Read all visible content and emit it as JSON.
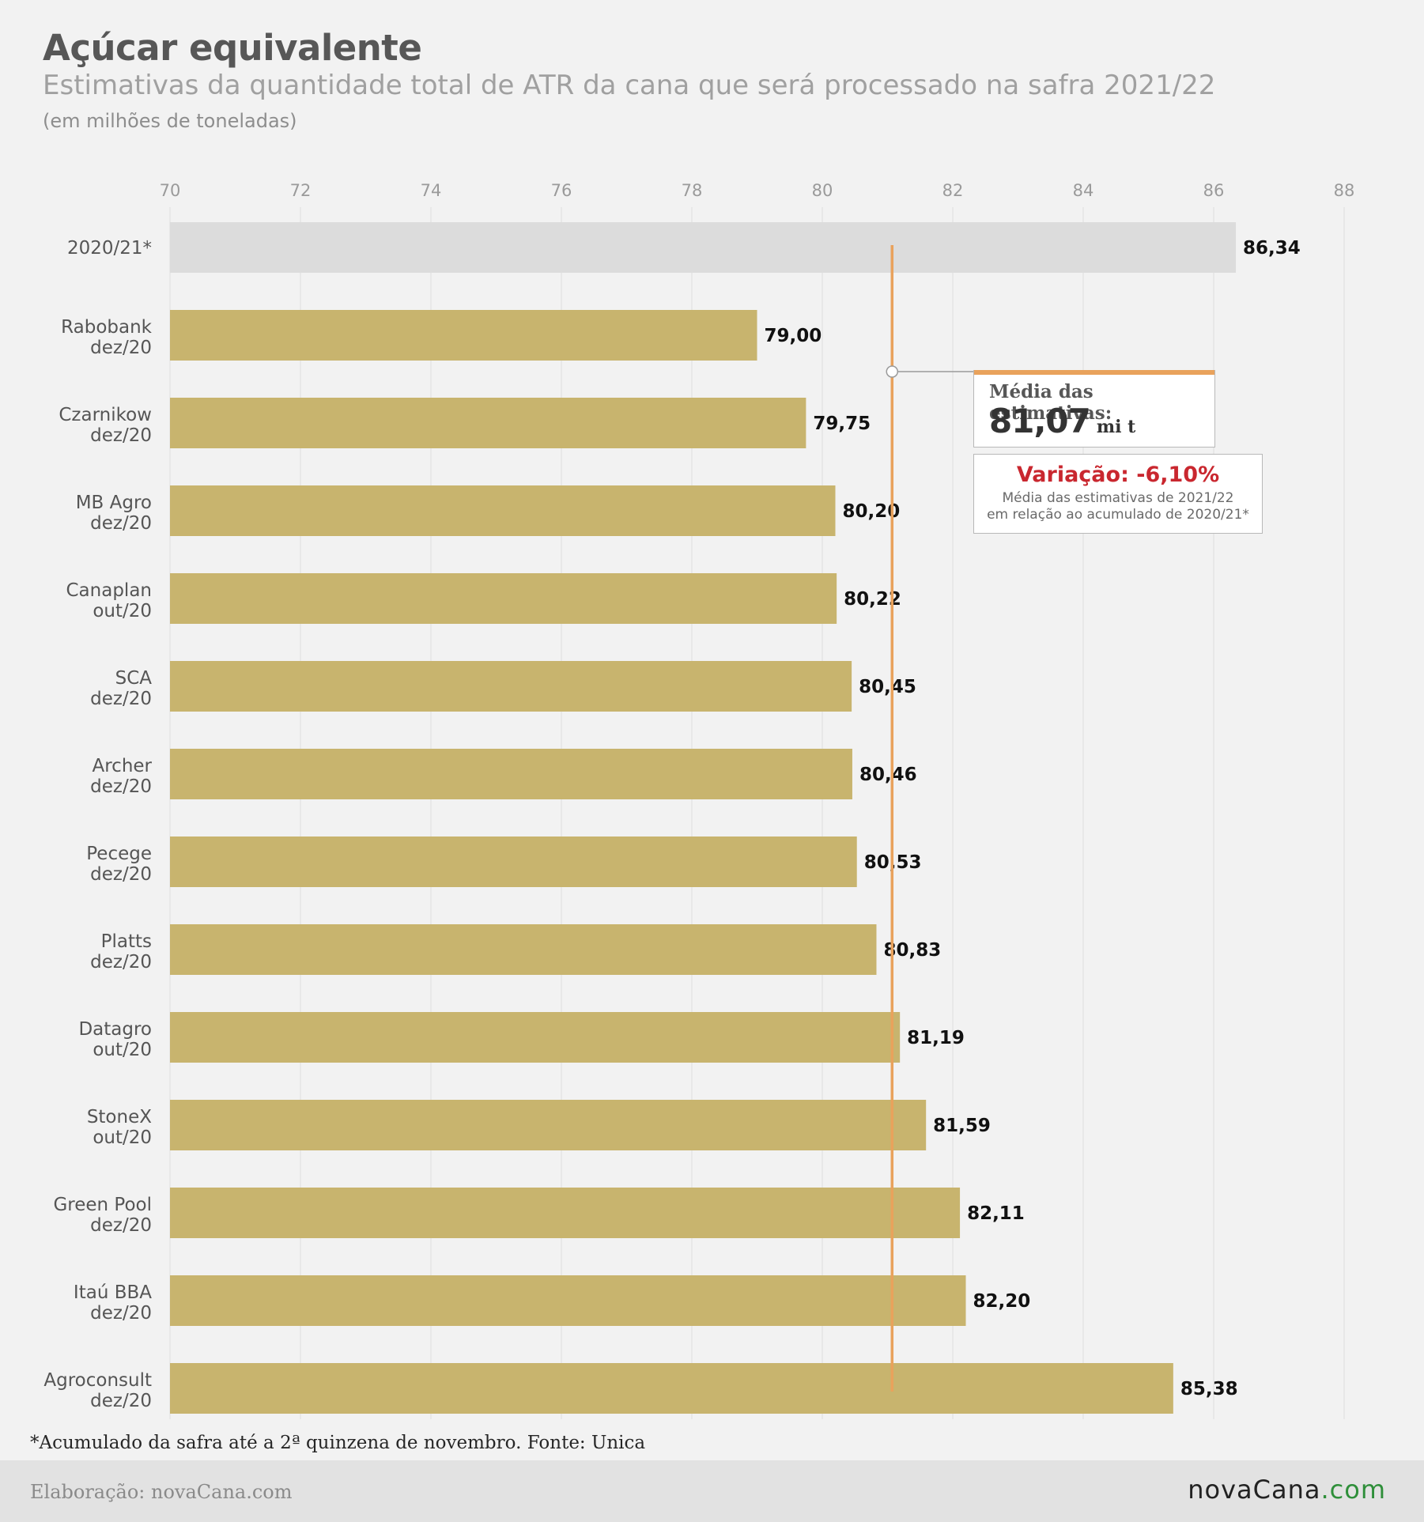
{
  "header": {
    "title": "Açúcar equivalente",
    "subtitle": "Estimativas da quantidade total de ATR da cana que será processado na safra 2021/22",
    "unit": "(em milhões de toneladas)"
  },
  "chart_data": {
    "type": "bar",
    "orientation": "horizontal",
    "title": "Açúcar equivalente",
    "subtitle": "Estimativas da quantidade total de ATR da cana que será processado na safra 2021/22",
    "xlabel": "",
    "ylabel": "",
    "xlim": [
      70,
      88
    ],
    "x_ticks": [
      70,
      72,
      74,
      76,
      78,
      80,
      82,
      84,
      86,
      88
    ],
    "grid": "vertical",
    "categories": [
      {
        "line1": "2020/21*",
        "line2": ""
      },
      {
        "line1": "Rabobank",
        "line2": "dez/20"
      },
      {
        "line1": "Czarnikow",
        "line2": "dez/20"
      },
      {
        "line1": "MB Agro",
        "line2": "dez/20"
      },
      {
        "line1": "Canaplan",
        "line2": "out/20"
      },
      {
        "line1": "SCA",
        "line2": "dez/20"
      },
      {
        "line1": "Archer",
        "line2": "dez/20"
      },
      {
        "line1": "Pecege",
        "line2": "dez/20"
      },
      {
        "line1": "Platts",
        "line2": "dez/20"
      },
      {
        "line1": "Datagro",
        "line2": "out/20"
      },
      {
        "line1": "StoneX",
        "line2": "out/20"
      },
      {
        "line1": "Green Pool",
        "line2": "dez/20"
      },
      {
        "line1": "Itaú BBA",
        "line2": "dez/20"
      },
      {
        "line1": "Agroconsult",
        "line2": "dez/20"
      }
    ],
    "values": [
      86.34,
      79.0,
      79.75,
      80.2,
      80.22,
      80.45,
      80.46,
      80.53,
      80.83,
      81.19,
      81.59,
      82.11,
      82.2,
      85.38
    ],
    "value_labels": [
      "86,34",
      "79,00",
      "79,75",
      "80,20",
      "80,22",
      "80,45",
      "80,46",
      "80,53",
      "80,83",
      "81,19",
      "81,59",
      "82,11",
      "82,20",
      "85,38"
    ],
    "highlight_index": 0,
    "reference_line": {
      "value": 81.07
    },
    "colors": {
      "bar": "#c8b46e",
      "highlight_bar": "#dcdcdc",
      "reference_line": "#e9a25c",
      "grid": "#e4e4e4",
      "tick_label": "#9a9a9a",
      "category_label": "#555555",
      "value_label": "#111111"
    }
  },
  "callout": {
    "label": "Média das estimativas:",
    "value": "81,07",
    "unit": "mi t"
  },
  "variation": {
    "value": "Variação: -6,10%",
    "note_line1": "Média das estimativas de 2021/22",
    "note_line2": "em relação ao acumulado de 2020/21*"
  },
  "footnote": "*Acumulado da safra até a 2ª quinzena de novembro. Fonte: Unica",
  "footer": {
    "credit": "Elaboração: novaCana.com",
    "logo_main": "novaCana",
    "logo_suffix": ".com"
  }
}
